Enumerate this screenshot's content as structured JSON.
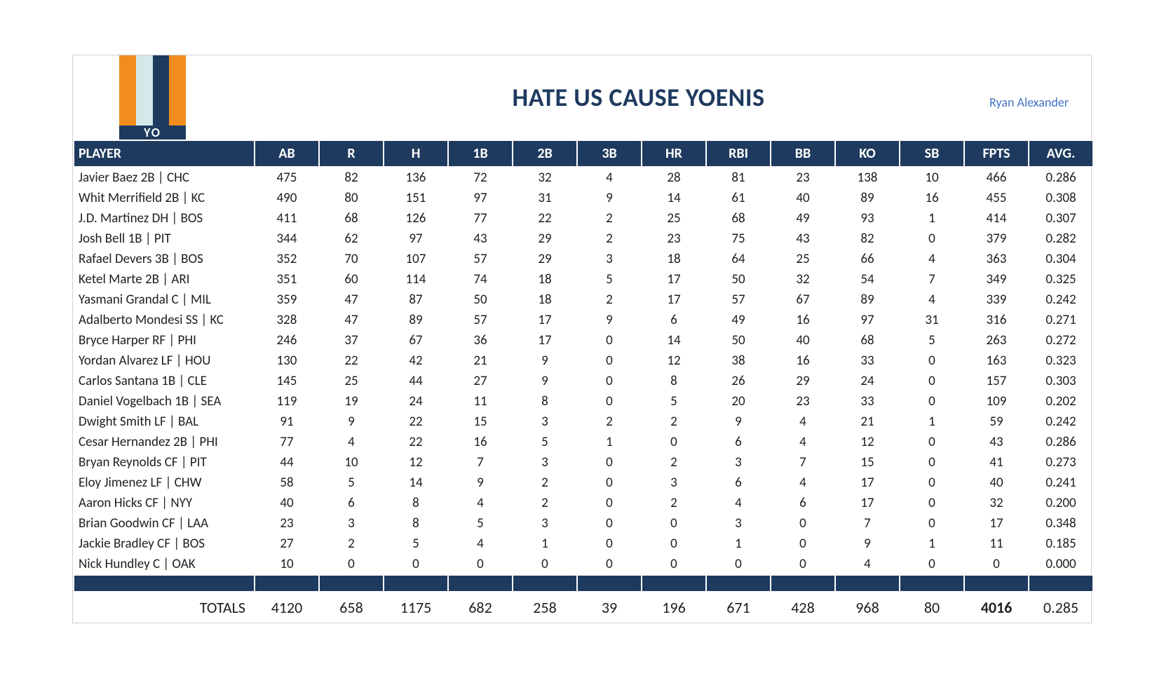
{
  "title": "HATE US CAUSE YOENIS",
  "owner": "Ryan Alexander",
  "logo_text": "YO",
  "logo_colors": [
    "#f28c1e",
    "#d4e8ea",
    "#1f3a5f",
    "#f28c1e"
  ],
  "header_bg": "#1f3a5f",
  "header_fg": "#ffffff",
  "title_color": "#1f3a5f",
  "owner_color": "#4472c4",
  "columns": [
    "PLAYER",
    "AB",
    "R",
    "H",
    "1B",
    "2B",
    "3B",
    "HR",
    "RBI",
    "BB",
    "KO",
    "SB",
    "FPTS",
    "AVG."
  ],
  "rows": [
    [
      "Javier Baez 2B | CHC",
      "475",
      "82",
      "136",
      "72",
      "32",
      "4",
      "28",
      "81",
      "23",
      "138",
      "10",
      "466",
      "0.286"
    ],
    [
      "Whit Merrifield 2B | KC",
      "490",
      "80",
      "151",
      "97",
      "31",
      "9",
      "14",
      "61",
      "40",
      "89",
      "16",
      "455",
      "0.308"
    ],
    [
      "J.D. Martinez DH | BOS",
      "411",
      "68",
      "126",
      "77",
      "22",
      "2",
      "25",
      "68",
      "49",
      "93",
      "1",
      "414",
      "0.307"
    ],
    [
      "Josh Bell 1B | PIT",
      "344",
      "62",
      "97",
      "43",
      "29",
      "2",
      "23",
      "75",
      "43",
      "82",
      "0",
      "379",
      "0.282"
    ],
    [
      "Rafael Devers 3B | BOS",
      "352",
      "70",
      "107",
      "57",
      "29",
      "3",
      "18",
      "64",
      "25",
      "66",
      "4",
      "363",
      "0.304"
    ],
    [
      "Ketel Marte 2B | ARI",
      "351",
      "60",
      "114",
      "74",
      "18",
      "5",
      "17",
      "50",
      "32",
      "54",
      "7",
      "349",
      "0.325"
    ],
    [
      "Yasmani Grandal C | MIL",
      "359",
      "47",
      "87",
      "50",
      "18",
      "2",
      "17",
      "57",
      "67",
      "89",
      "4",
      "339",
      "0.242"
    ],
    [
      "Adalberto Mondesi SS | KC",
      "328",
      "47",
      "89",
      "57",
      "17",
      "9",
      "6",
      "49",
      "16",
      "97",
      "31",
      "316",
      "0.271"
    ],
    [
      "Bryce Harper RF | PHI",
      "246",
      "37",
      "67",
      "36",
      "17",
      "0",
      "14",
      "50",
      "40",
      "68",
      "5",
      "263",
      "0.272"
    ],
    [
      "Yordan Alvarez LF | HOU",
      "130",
      "22",
      "42",
      "21",
      "9",
      "0",
      "12",
      "38",
      "16",
      "33",
      "0",
      "163",
      "0.323"
    ],
    [
      "Carlos Santana 1B | CLE",
      "145",
      "25",
      "44",
      "27",
      "9",
      "0",
      "8",
      "26",
      "29",
      "24",
      "0",
      "157",
      "0.303"
    ],
    [
      "Daniel Vogelbach 1B | SEA",
      "119",
      "19",
      "24",
      "11",
      "8",
      "0",
      "5",
      "20",
      "23",
      "33",
      "0",
      "109",
      "0.202"
    ],
    [
      "Dwight Smith LF | BAL",
      "91",
      "9",
      "22",
      "15",
      "3",
      "2",
      "2",
      "9",
      "4",
      "21",
      "1",
      "59",
      "0.242"
    ],
    [
      "Cesar Hernandez 2B | PHI",
      "77",
      "4",
      "22",
      "16",
      "5",
      "1",
      "0",
      "6",
      "4",
      "12",
      "0",
      "43",
      "0.286"
    ],
    [
      "Bryan Reynolds CF | PIT",
      "44",
      "10",
      "12",
      "7",
      "3",
      "0",
      "2",
      "3",
      "7",
      "15",
      "0",
      "41",
      "0.273"
    ],
    [
      "Eloy Jimenez LF | CHW",
      "58",
      "5",
      "14",
      "9",
      "2",
      "0",
      "3",
      "6",
      "4",
      "17",
      "0",
      "40",
      "0.241"
    ],
    [
      "Aaron Hicks CF | NYY",
      "40",
      "6",
      "8",
      "4",
      "2",
      "0",
      "2",
      "4",
      "6",
      "17",
      "0",
      "32",
      "0.200"
    ],
    [
      "Brian Goodwin CF | LAA",
      "23",
      "3",
      "8",
      "5",
      "3",
      "0",
      "0",
      "3",
      "0",
      "7",
      "0",
      "17",
      "0.348"
    ],
    [
      "Jackie Bradley CF | BOS",
      "27",
      "2",
      "5",
      "4",
      "1",
      "0",
      "0",
      "1",
      "0",
      "9",
      "1",
      "11",
      "0.185"
    ],
    [
      "Nick Hundley C | OAK",
      "10",
      "0",
      "0",
      "0",
      "0",
      "0",
      "0",
      "0",
      "0",
      "4",
      "0",
      "0",
      "0.000"
    ]
  ],
  "totals_label": "TOTALS",
  "totals": [
    "4120",
    "658",
    "1175",
    "682",
    "258",
    "39",
    "196",
    "671",
    "428",
    "968",
    "80",
    "4016",
    "0.285"
  ]
}
